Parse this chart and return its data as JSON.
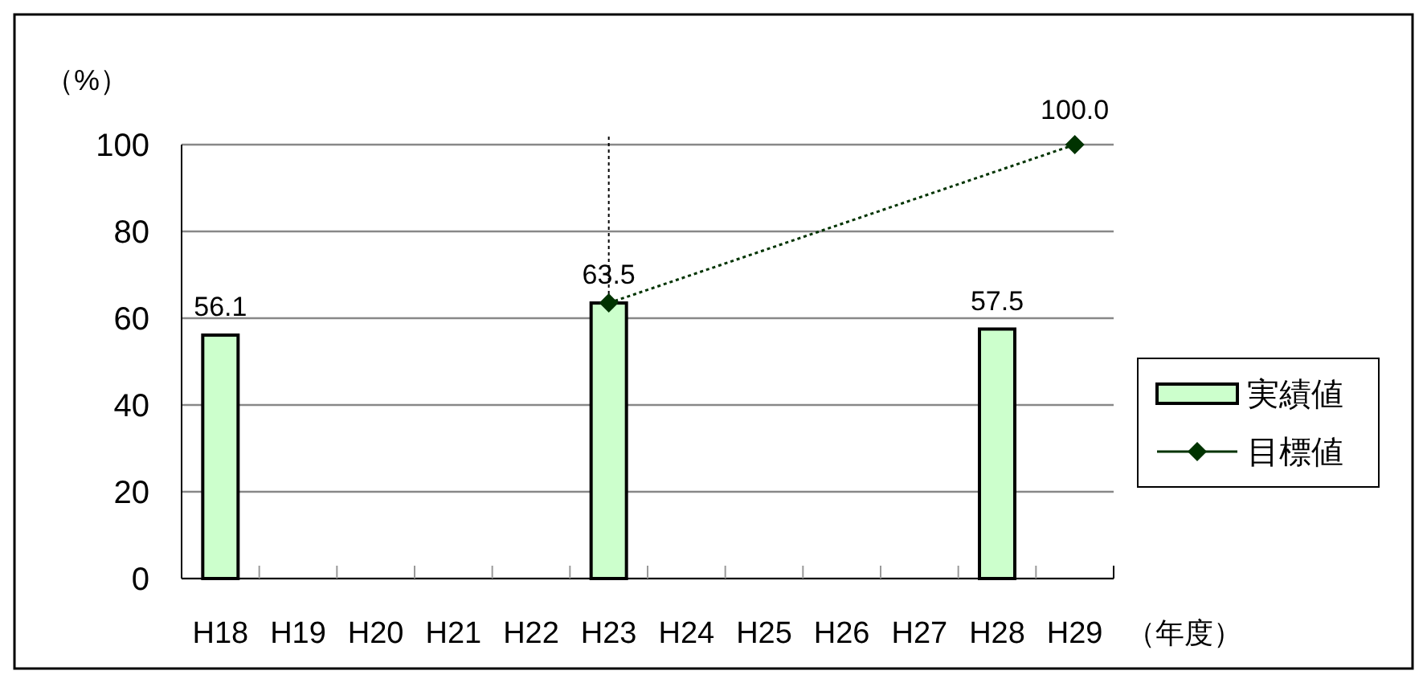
{
  "chart_data": {
    "type": "bar",
    "ylabel": "（%）",
    "xlabel": "（年度）",
    "categories": [
      "H18",
      "H19",
      "H20",
      "H21",
      "H22",
      "H23",
      "H24",
      "H25",
      "H26",
      "H27",
      "H28",
      "H29"
    ],
    "series": [
      {
        "name": "実績値",
        "color": "#ccffcc",
        "values": [
          56.1,
          null,
          null,
          null,
          null,
          63.5,
          null,
          null,
          null,
          null,
          57.5,
          null
        ],
        "value_labels": [
          "56.1",
          null,
          null,
          null,
          null,
          "63.5",
          null,
          null,
          null,
          null,
          "57.5",
          null
        ]
      },
      {
        "name": "目標値",
        "type": "line",
        "color": "#003300",
        "marker": "diamond",
        "line_style": "dotted",
        "values": [
          null,
          null,
          null,
          null,
          null,
          63.5,
          null,
          null,
          null,
          null,
          null,
          100
        ],
        "value_labels": [
          null,
          null,
          null,
          null,
          null,
          null,
          null,
          null,
          null,
          null,
          null,
          "100.0"
        ]
      }
    ],
    "ylim": [
      0,
      100
    ],
    "yticks": [
      0,
      20,
      40,
      60,
      80,
      100
    ],
    "grid": "y",
    "legend": "right",
    "ref_lines": [
      {
        "axis": "x",
        "value": "H23",
        "line_style": "dotted"
      }
    ]
  }
}
